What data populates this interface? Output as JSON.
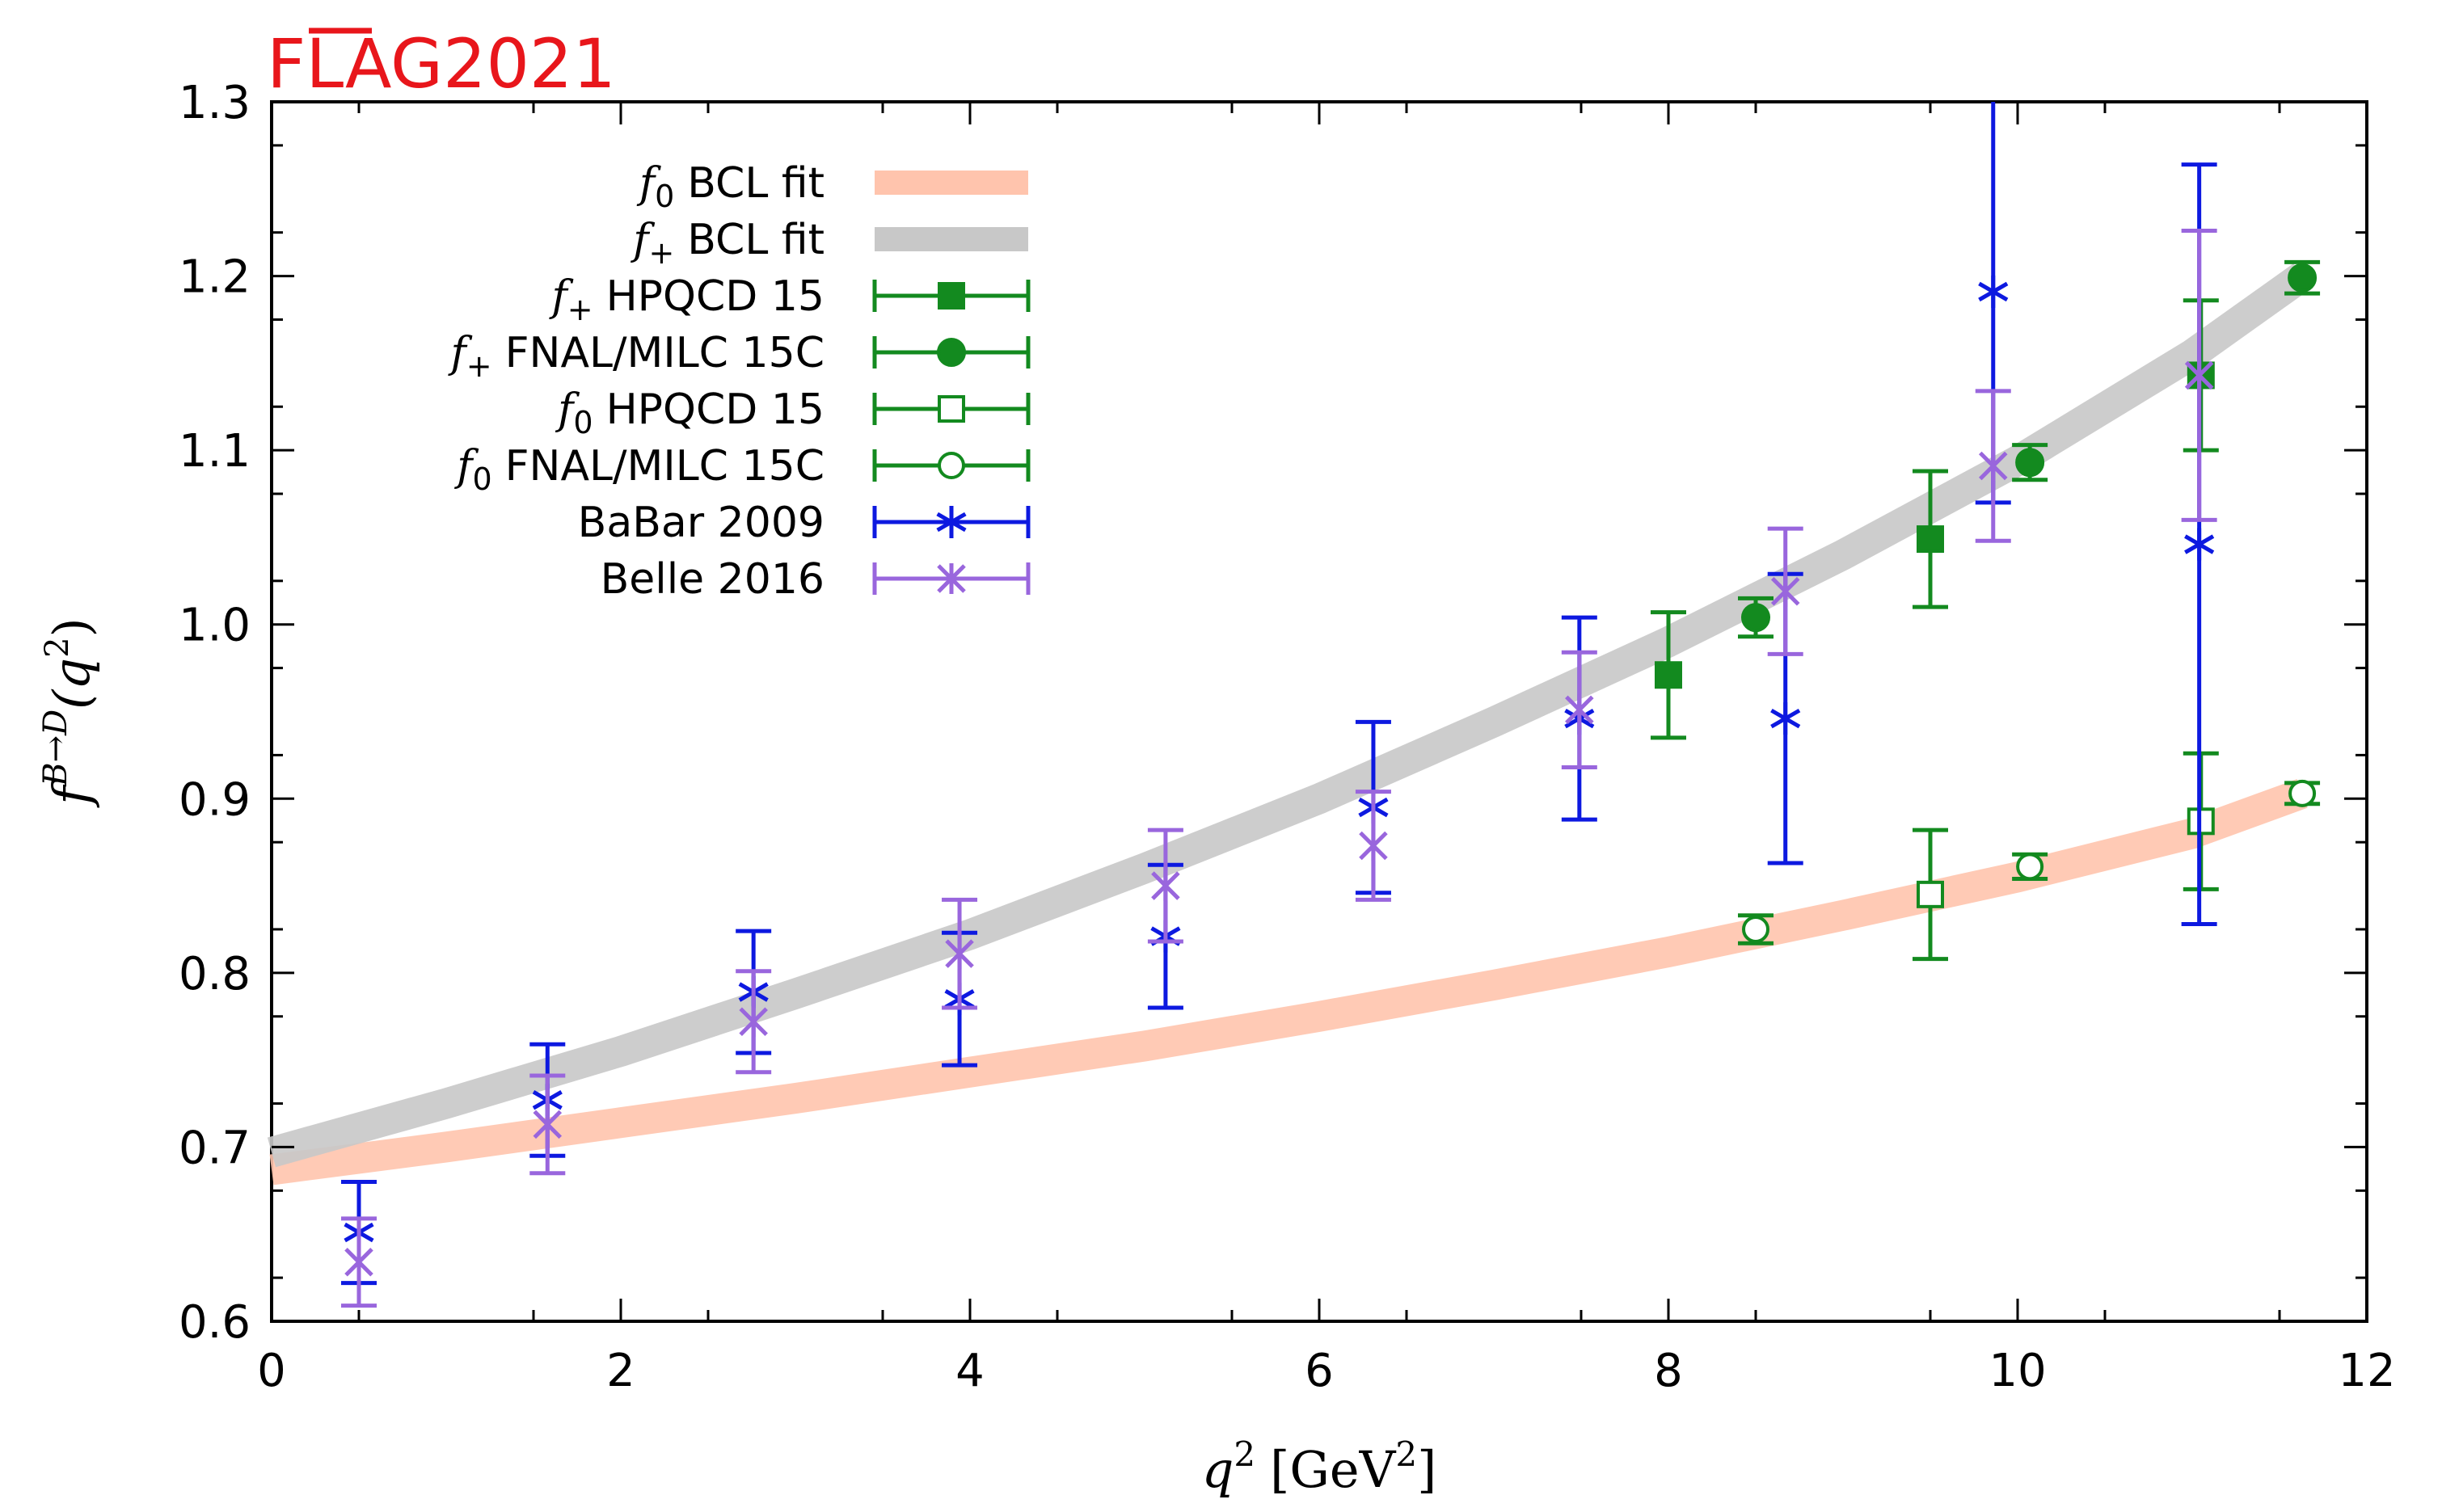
{
  "brand": {
    "prefix": "FLAG",
    "year": "2021",
    "color": "#e8161b"
  },
  "chart_data": {
    "type": "scatter",
    "xlabel_main": "q",
    "xlabel_sup": "2",
    "xlabel_unit_open": "[GeV",
    "xlabel_unit_sup": "2",
    "xlabel_unit_close": "]",
    "ylabel_f": "f",
    "ylabel_sup": "B→D",
    "ylabel_arg": "(q",
    "ylabel_arg_sup": "2",
    "ylabel_close": ")",
    "xlim": [
      0,
      12
    ],
    "ylim": [
      0.6,
      1.3
    ],
    "x_ticks": [
      0,
      2,
      4,
      6,
      8,
      10,
      12
    ],
    "y_ticks": [
      0.6,
      0.7,
      0.8,
      0.9,
      1.0,
      1.1,
      1.2,
      1.3
    ],
    "x_tick_labels": [
      "0",
      "2",
      "4",
      "6",
      "8",
      "10",
      "12"
    ],
    "y_tick_labels": [
      "0.6",
      "0.7",
      "0.8",
      "0.9",
      "1.0",
      "1.1",
      "1.2",
      "1.3"
    ],
    "legend_position": "top-left",
    "bands": [
      {
        "key": "f0fit",
        "sym": "f",
        "sub": "0",
        "label": "BCL fit",
        "color": "#ffc4ad",
        "x": [
          0,
          1,
          2,
          3,
          4,
          5,
          6,
          7,
          8,
          9,
          10,
          11,
          11.63
        ],
        "y": [
          0.687,
          0.7,
          0.714,
          0.728,
          0.743,
          0.758,
          0.775,
          0.793,
          0.812,
          0.833,
          0.855,
          0.88,
          0.903
        ]
      },
      {
        "key": "fpfit",
        "sym": "f",
        "sub": "+",
        "label": "BCL fit",
        "color": "#c8c8c8",
        "x": [
          0,
          1,
          2,
          3,
          4,
          5,
          6,
          7,
          8,
          9,
          10,
          11,
          11.63
        ],
        "y": [
          0.697,
          0.725,
          0.755,
          0.788,
          0.822,
          0.86,
          0.9,
          0.944,
          0.99,
          1.04,
          1.094,
          1.155,
          1.2
        ]
      }
    ],
    "series": [
      {
        "key": "hp_fp",
        "sym": "f",
        "sub": "+",
        "name": "HPQCD 15",
        "marker": "square-filled",
        "color": "#138a1f",
        "points": [
          {
            "x": 8.0,
            "y": 0.971,
            "err": 0.036
          },
          {
            "x": 9.5,
            "y": 1.049,
            "err": 0.039
          },
          {
            "x": 11.05,
            "y": 1.143,
            "err": 0.043
          }
        ]
      },
      {
        "key": "fn_fp",
        "sym": "f",
        "sub": "+",
        "name": "FNAL/MILC 15C",
        "marker": "circle-filled",
        "color": "#138a1f",
        "points": [
          {
            "x": 8.5,
            "y": 1.004,
            "err": 0.011
          },
          {
            "x": 10.07,
            "y": 1.093,
            "err": 0.01
          },
          {
            "x": 11.63,
            "y": 1.199,
            "err": 0.009
          }
        ]
      },
      {
        "key": "hp_f0",
        "sym": "f",
        "sub": "0",
        "name": "HPQCD 15",
        "marker": "square-open",
        "color": "#138a1f",
        "points": [
          {
            "x": 9.5,
            "y": 0.845,
            "err": 0.037
          },
          {
            "x": 11.05,
            "y": 0.887,
            "err": 0.039
          }
        ]
      },
      {
        "key": "fn_f0",
        "sym": "f",
        "sub": "0",
        "name": "FNAL/MILC 15C",
        "marker": "circle-open",
        "color": "#138a1f",
        "points": [
          {
            "x": 8.5,
            "y": 0.825,
            "err": 0.008
          },
          {
            "x": 10.07,
            "y": 0.861,
            "err": 0.007
          },
          {
            "x": 11.63,
            "y": 0.903,
            "err": 0.006
          }
        ]
      },
      {
        "key": "babar",
        "sym": "",
        "sub": "",
        "name": "BaBar 2009",
        "marker": "star",
        "color": "#0d19e0",
        "points": [
          {
            "x": 0.5,
            "y": 0.651,
            "err": 0.029
          },
          {
            "x": 1.58,
            "y": 0.727,
            "err": 0.032
          },
          {
            "x": 2.76,
            "y": 0.789,
            "err": 0.035
          },
          {
            "x": 3.94,
            "y": 0.785,
            "err": 0.038
          },
          {
            "x": 5.12,
            "y": 0.821,
            "err": 0.041
          },
          {
            "x": 6.31,
            "y": 0.895,
            "err": 0.049
          },
          {
            "x": 7.49,
            "y": 0.946,
            "err": 0.058
          },
          {
            "x": 8.67,
            "y": 0.946,
            "err": 0.083
          },
          {
            "x": 9.86,
            "y": 1.191,
            "err": 0.121
          },
          {
            "x": 11.04,
            "y": 1.046,
            "err": 0.218
          }
        ]
      },
      {
        "key": "belle",
        "sym": "",
        "sub": "",
        "name": "Belle 2016",
        "marker": "cross",
        "color": "#9966dd",
        "points": [
          {
            "x": 0.5,
            "y": 0.634,
            "err": 0.025
          },
          {
            "x": 1.58,
            "y": 0.713,
            "err": 0.028
          },
          {
            "x": 2.76,
            "y": 0.772,
            "err": 0.029
          },
          {
            "x": 3.94,
            "y": 0.811,
            "err": 0.031
          },
          {
            "x": 5.12,
            "y": 0.85,
            "err": 0.032
          },
          {
            "x": 6.31,
            "y": 0.873,
            "err": 0.031
          },
          {
            "x": 7.49,
            "y": 0.951,
            "err": 0.033
          },
          {
            "x": 8.67,
            "y": 1.019,
            "err": 0.036
          },
          {
            "x": 9.86,
            "y": 1.091,
            "err": 0.043
          },
          {
            "x": 11.04,
            "y": 1.143,
            "err": 0.083
          }
        ]
      }
    ]
  }
}
